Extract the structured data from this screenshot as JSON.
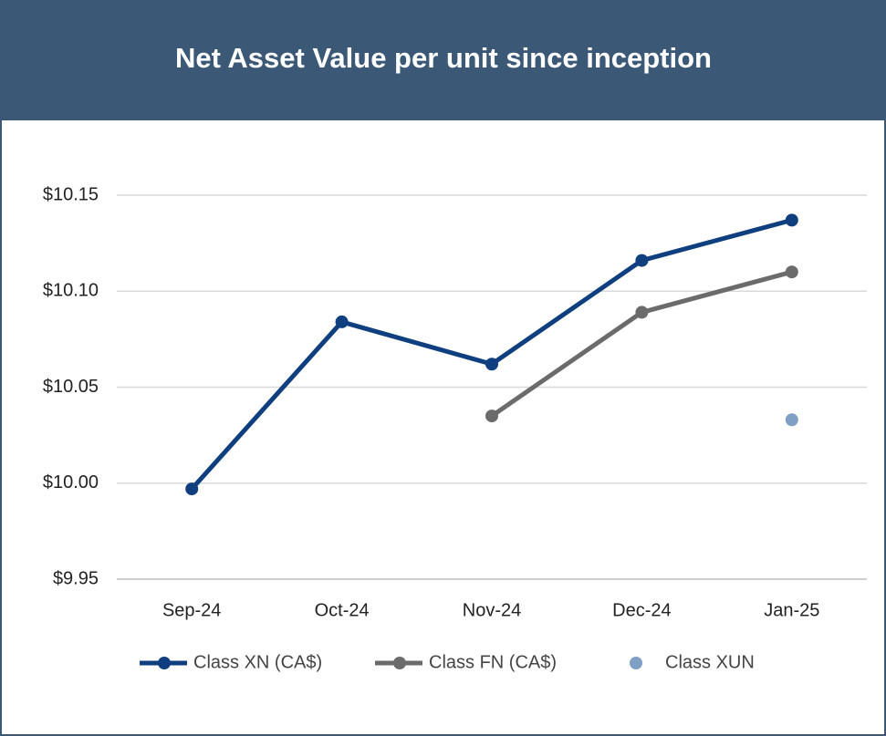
{
  "chart_data": {
    "type": "line",
    "title": "Net Asset Value per unit since inception",
    "categories": [
      "Sep-24",
      "Oct-24",
      "Nov-24",
      "Dec-24",
      "Jan-25"
    ],
    "series": [
      {
        "name": "Class XN (CA$)",
        "color": "#0f3f7f",
        "values": [
          9.997,
          10.084,
          10.062,
          10.116,
          10.137
        ]
      },
      {
        "name": "Class FN (CA$)",
        "color": "#6b6b6b",
        "values": [
          null,
          null,
          10.035,
          10.089,
          10.11
        ]
      },
      {
        "name": "Class XUN",
        "color": "#7f9fc4",
        "values": [
          null,
          null,
          null,
          null,
          10.033
        ]
      }
    ],
    "ylim": [
      9.95,
      10.15
    ],
    "yticks": [
      {
        "value": 9.95,
        "label": "$9.95"
      },
      {
        "value": 10.0,
        "label": "$10.00"
      },
      {
        "value": 10.05,
        "label": "$10.05"
      },
      {
        "value": 10.1,
        "label": "$10.10"
      },
      {
        "value": 10.15,
        "label": "$10.15"
      }
    ],
    "grid": true,
    "legend": "bottom"
  }
}
